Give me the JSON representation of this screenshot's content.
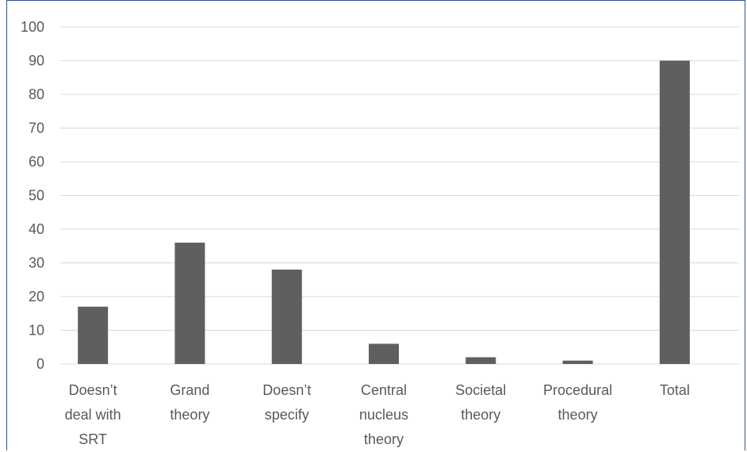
{
  "chart_data": {
    "type": "bar",
    "categories": [
      "Doesn’t deal with SRT",
      "Grand theory",
      "Doesn’t specify",
      "Central nucleus theory",
      "Societal theory",
      "Procedural theory",
      "Total"
    ],
    "category_lines": [
      [
        "Doesn’t",
        "deal with",
        "SRT"
      ],
      [
        "Grand",
        "theory"
      ],
      [
        "Doesn’t",
        "specify"
      ],
      [
        "Central",
        "nucleus",
        "theory"
      ],
      [
        "Societal",
        "theory"
      ],
      [
        "Procedural",
        "theory"
      ],
      [
        "Total"
      ]
    ],
    "values": [
      17,
      36,
      28,
      6,
      2,
      1,
      90
    ],
    "ylim": [
      0,
      100
    ],
    "yticks": [
      0,
      10,
      20,
      30,
      40,
      50,
      60,
      70,
      80,
      90,
      100
    ],
    "grid": true,
    "bar_color": "#5f5f5f",
    "title": "",
    "xlabel": "",
    "ylabel": ""
  }
}
